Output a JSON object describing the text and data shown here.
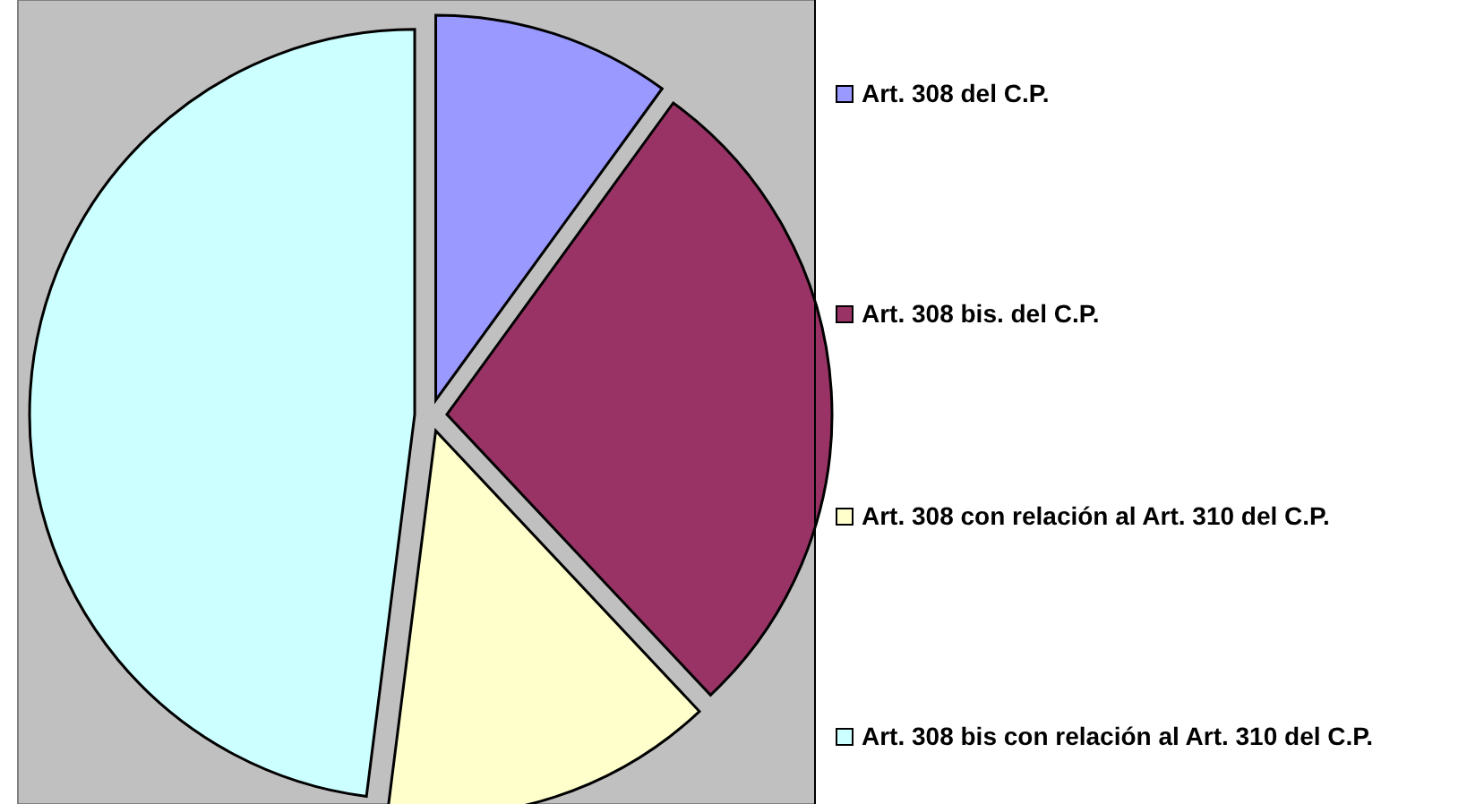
{
  "chart_data": {
    "type": "pie",
    "categories": [
      "Art. 308 del C.P.",
      "Art. 308 bis. del C.P.",
      "Art. 308 con relación al Art. 310 del C.P.",
      "Art. 308 bis con relación al Art. 310 del C.P."
    ],
    "values": [
      10,
      28,
      14,
      48
    ],
    "colors": [
      "#9999ff",
      "#993366",
      "#ffffcc",
      "#ccffff"
    ],
    "legend": "right"
  }
}
